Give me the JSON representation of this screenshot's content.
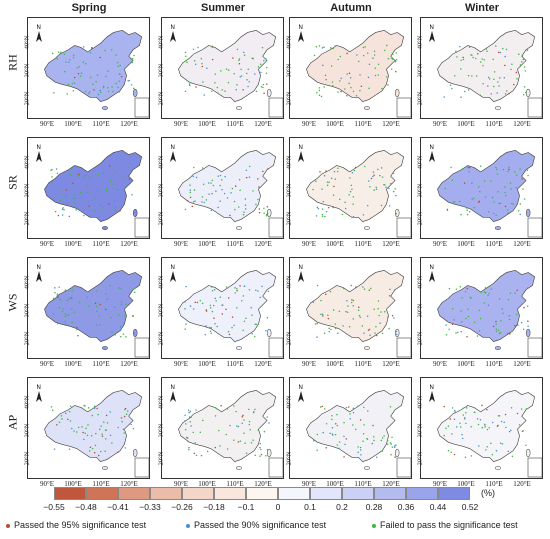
{
  "columns": [
    "Spring",
    "Summer",
    "Autumn",
    "Winter"
  ],
  "rows": [
    "RH",
    "SR",
    "WS",
    "AP"
  ],
  "lat_labels": [
    "40°N",
    "30°N",
    "20°N"
  ],
  "lon_labels": [
    "90°E",
    "100°E",
    "110°E",
    "120°E"
  ],
  "north_label": "N",
  "unit": "(%)",
  "legend_ticks": [
    "−0.55",
    "−0.48",
    "−0.41",
    "−0.33",
    "−0.26",
    "−0.18",
    "−0.1",
    "0",
    "0.1",
    "0.2",
    "0.28",
    "0.36",
    "0.44",
    "0.52"
  ],
  "legend_colors": [
    "#c0563b",
    "#cf7457",
    "#de9a80",
    "#ebbca8",
    "#f4d6c8",
    "#f9e7de",
    "#fdf5f0",
    "#f5f6fd",
    "#e3e6fa",
    "#cbd1f5",
    "#b3bbef",
    "#9aa4ea",
    "#7f8be3"
  ],
  "significance": [
    {
      "label": "Passed the 95% significance test",
      "color": "#b84a2e"
    },
    {
      "label": "Passed the 90% significance test",
      "color": "#4a8fd6"
    },
    {
      "label": "Failed to pass the significance test",
      "color": "#3fb83f"
    }
  ],
  "panel_tints": [
    [
      "#a9b3ef",
      "#f1edf2",
      "#f6e4dc",
      "#f3eef0"
    ],
    [
      "#7e8ae2",
      "#eceef9",
      "#f8eee8",
      "#a4aeee"
    ],
    [
      "#8f9ae7",
      "#eef0fb",
      "#f7ece4",
      "#aab3ef"
    ],
    [
      "#dde2f8",
      "#f3f0f1",
      "#f2f2f6",
      "#f5f5f9"
    ]
  ]
}
